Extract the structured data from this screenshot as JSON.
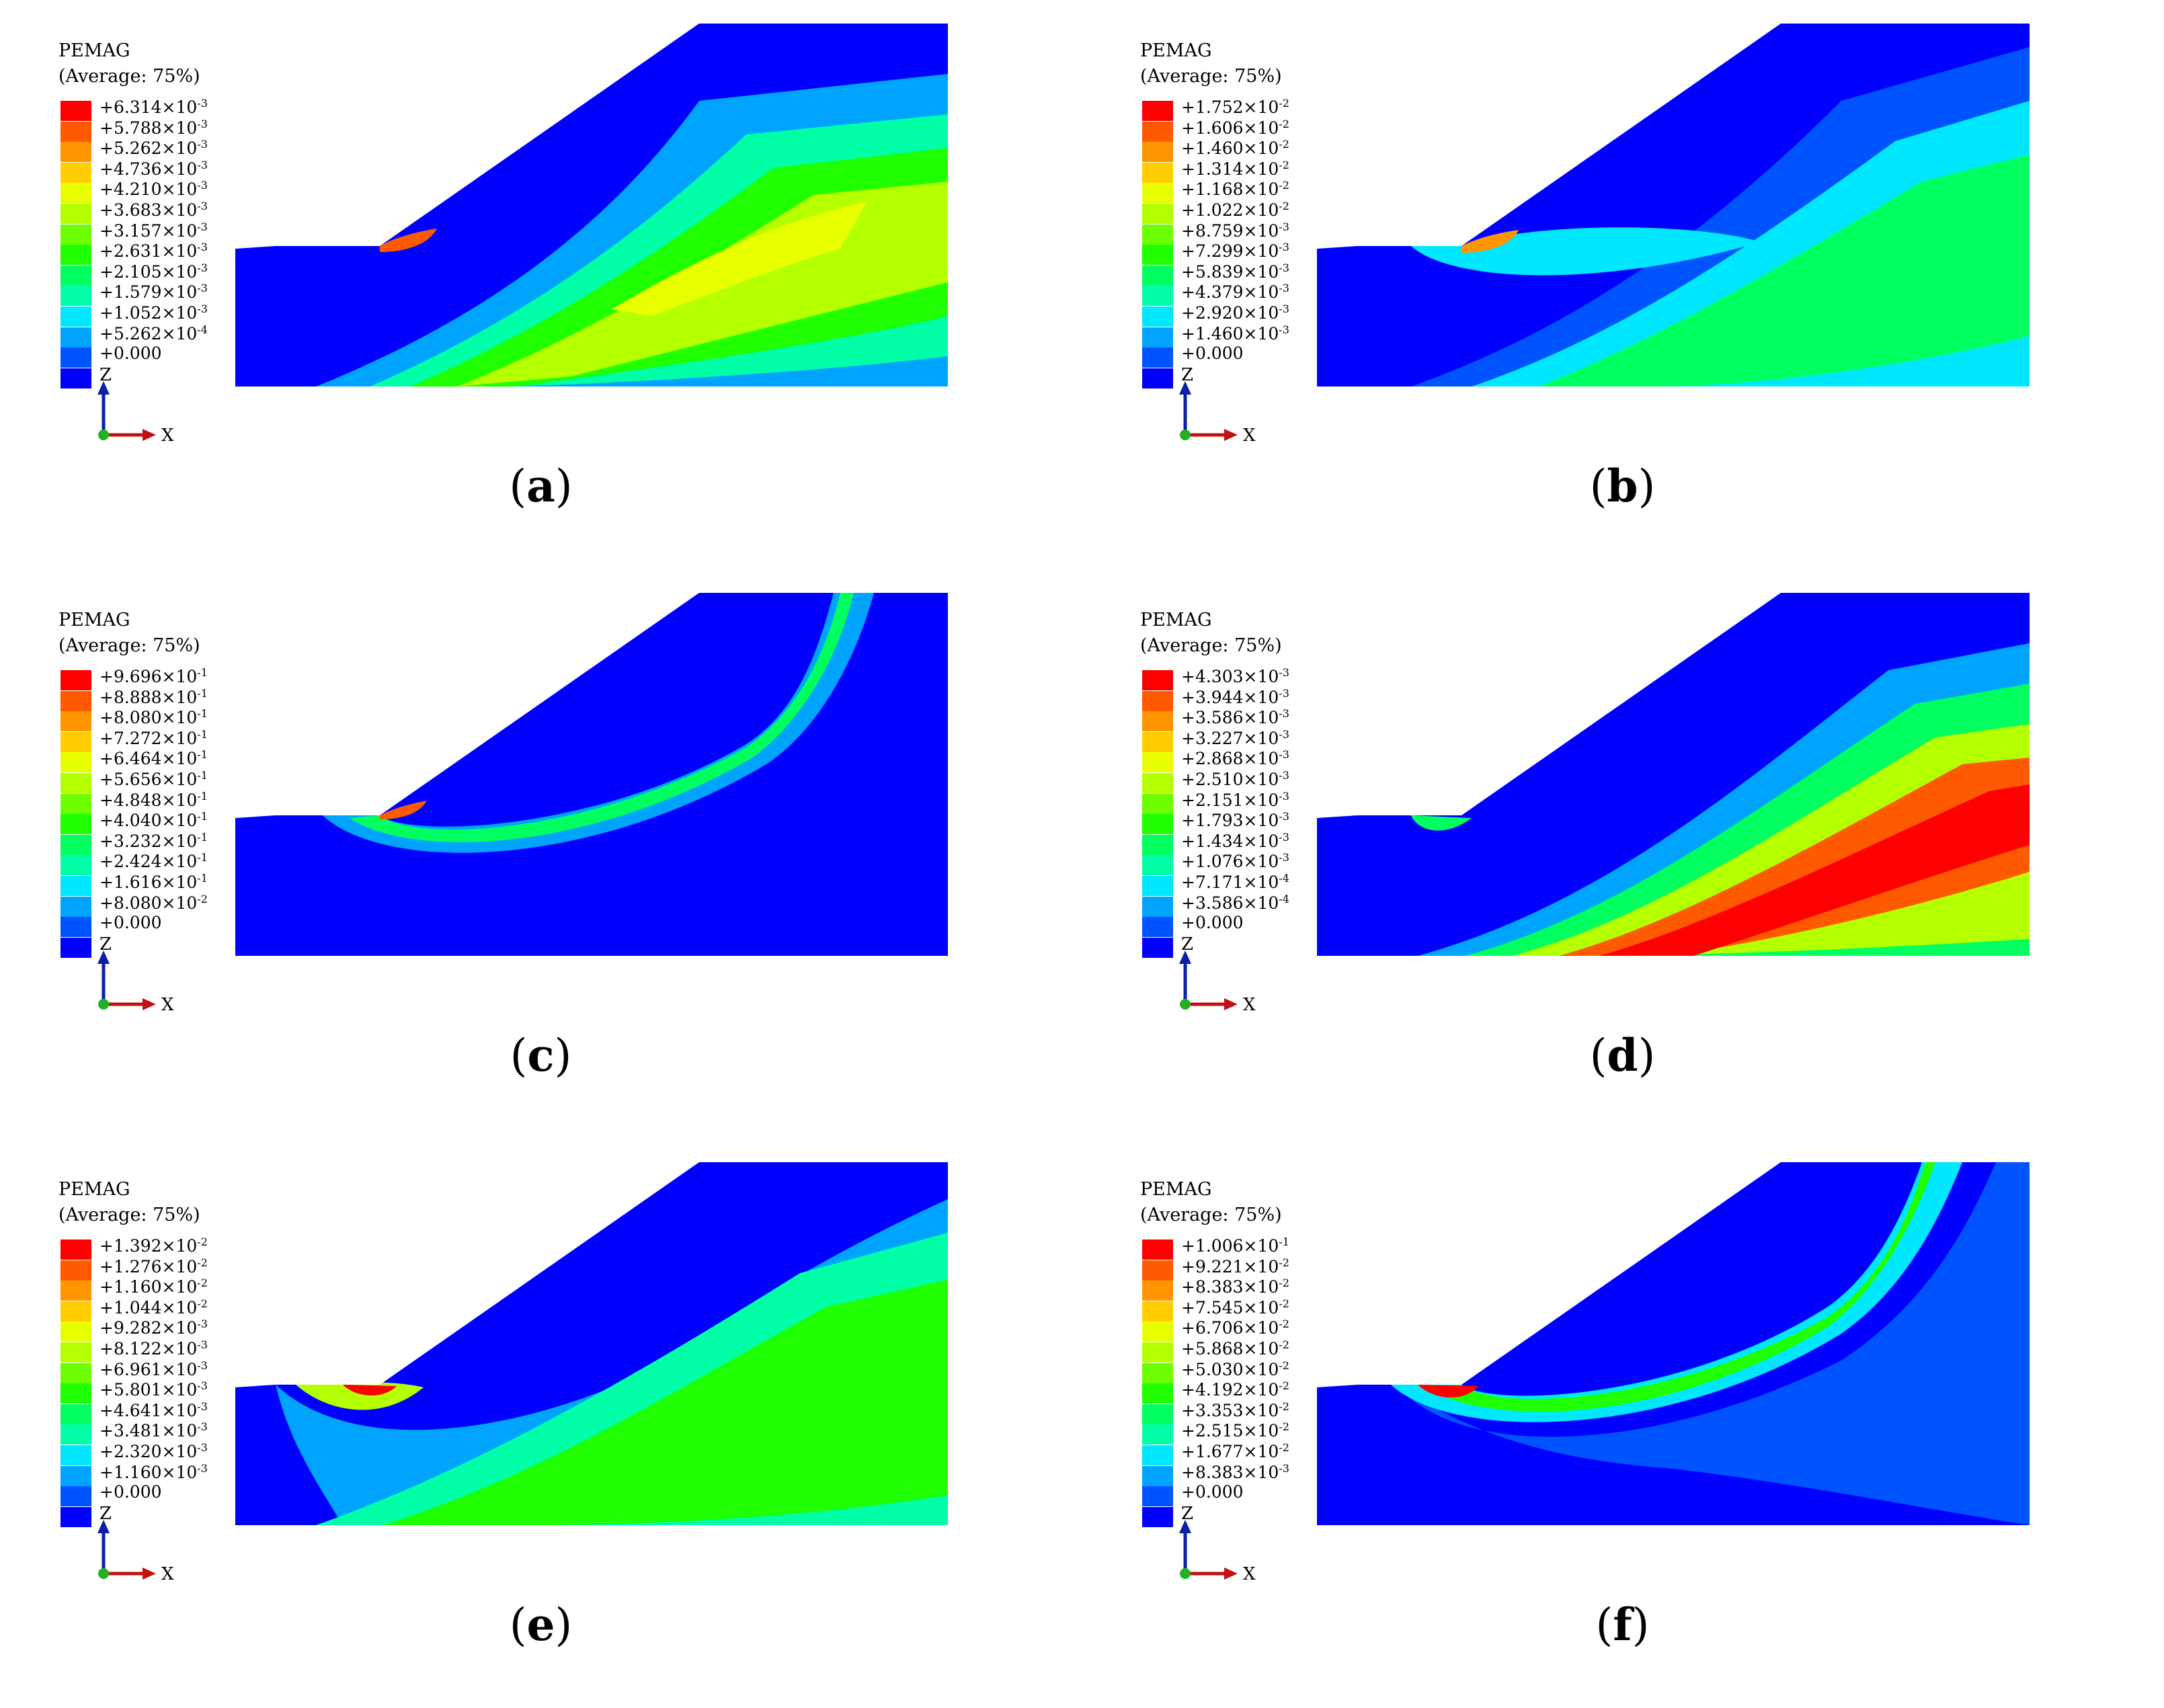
{
  "variable": "PEMAG",
  "averaging": "(Average: 75%)",
  "times_sign": "×",
  "axis_labels": {
    "vertical": "Z",
    "horizontal": "X"
  },
  "colormap": [
    "#ff0000",
    "#ff5a00",
    "#ff9600",
    "#ffcd00",
    "#e8ff00",
    "#b4ff00",
    "#6dff00",
    "#1fff00",
    "#00ff5f",
    "#00ffa7",
    "#00e7ff",
    "#00a4ff",
    "#0054ff",
    "#0000ff"
  ],
  "panels": [
    {
      "caption_letter": "a",
      "legend": [
        {
          "sign": "+",
          "mantissa": "6.314",
          "base": "10",
          "exponent": "-3"
        },
        {
          "sign": "+",
          "mantissa": "5.788",
          "base": "10",
          "exponent": "-3"
        },
        {
          "sign": "+",
          "mantissa": "5.262",
          "base": "10",
          "exponent": "-3"
        },
        {
          "sign": "+",
          "mantissa": "4.736",
          "base": "10",
          "exponent": "-3"
        },
        {
          "sign": "+",
          "mantissa": "4.210",
          "base": "10",
          "exponent": "-3"
        },
        {
          "sign": "+",
          "mantissa": "3.683",
          "base": "10",
          "exponent": "-3"
        },
        {
          "sign": "+",
          "mantissa": "3.157",
          "base": "10",
          "exponent": "-3"
        },
        {
          "sign": "+",
          "mantissa": "2.631",
          "base": "10",
          "exponent": "-3"
        },
        {
          "sign": "+",
          "mantissa": "2.105",
          "base": "10",
          "exponent": "-3"
        },
        {
          "sign": "+",
          "mantissa": "1.579",
          "base": "10",
          "exponent": "-3"
        },
        {
          "sign": "+",
          "mantissa": "1.052",
          "base": "10",
          "exponent": "-3"
        },
        {
          "sign": "+",
          "mantissa": "5.262",
          "base": "10",
          "exponent": "-4"
        },
        {
          "sign": "+",
          "mantissa": "0.000",
          "base": "",
          "exponent": ""
        }
      ]
    },
    {
      "caption_letter": "b",
      "legend": [
        {
          "sign": "+",
          "mantissa": "1.752",
          "base": "10",
          "exponent": "-2"
        },
        {
          "sign": "+",
          "mantissa": "1.606",
          "base": "10",
          "exponent": "-2"
        },
        {
          "sign": "+",
          "mantissa": "1.460",
          "base": "10",
          "exponent": "-2"
        },
        {
          "sign": "+",
          "mantissa": "1.314",
          "base": "10",
          "exponent": "-2"
        },
        {
          "sign": "+",
          "mantissa": "1.168",
          "base": "10",
          "exponent": "-2"
        },
        {
          "sign": "+",
          "mantissa": "1.022",
          "base": "10",
          "exponent": "-2"
        },
        {
          "sign": "+",
          "mantissa": "8.759",
          "base": "10",
          "exponent": "-3"
        },
        {
          "sign": "+",
          "mantissa": "7.299",
          "base": "10",
          "exponent": "-3"
        },
        {
          "sign": "+",
          "mantissa": "5.839",
          "base": "10",
          "exponent": "-3"
        },
        {
          "sign": "+",
          "mantissa": "4.379",
          "base": "10",
          "exponent": "-3"
        },
        {
          "sign": "+",
          "mantissa": "2.920",
          "base": "10",
          "exponent": "-3"
        },
        {
          "sign": "+",
          "mantissa": "1.460",
          "base": "10",
          "exponent": "-3"
        },
        {
          "sign": "+",
          "mantissa": "0.000",
          "base": "",
          "exponent": ""
        }
      ]
    },
    {
      "caption_letter": "c",
      "legend": [
        {
          "sign": "+",
          "mantissa": "9.696",
          "base": "10",
          "exponent": "-1"
        },
        {
          "sign": "+",
          "mantissa": "8.888",
          "base": "10",
          "exponent": "-1"
        },
        {
          "sign": "+",
          "mantissa": "8.080",
          "base": "10",
          "exponent": "-1"
        },
        {
          "sign": "+",
          "mantissa": "7.272",
          "base": "10",
          "exponent": "-1"
        },
        {
          "sign": "+",
          "mantissa": "6.464",
          "base": "10",
          "exponent": "-1"
        },
        {
          "sign": "+",
          "mantissa": "5.656",
          "base": "10",
          "exponent": "-1"
        },
        {
          "sign": "+",
          "mantissa": "4.848",
          "base": "10",
          "exponent": "-1"
        },
        {
          "sign": "+",
          "mantissa": "4.040",
          "base": "10",
          "exponent": "-1"
        },
        {
          "sign": "+",
          "mantissa": "3.232",
          "base": "10",
          "exponent": "-1"
        },
        {
          "sign": "+",
          "mantissa": "2.424",
          "base": "10",
          "exponent": "-1"
        },
        {
          "sign": "+",
          "mantissa": "1.616",
          "base": "10",
          "exponent": "-1"
        },
        {
          "sign": "+",
          "mantissa": "8.080",
          "base": "10",
          "exponent": "-2"
        },
        {
          "sign": "+",
          "mantissa": "0.000",
          "base": "",
          "exponent": ""
        }
      ]
    },
    {
      "caption_letter": "d",
      "legend": [
        {
          "sign": "+",
          "mantissa": "4.303",
          "base": "10",
          "exponent": "-3"
        },
        {
          "sign": "+",
          "mantissa": "3.944",
          "base": "10",
          "exponent": "-3"
        },
        {
          "sign": "+",
          "mantissa": "3.586",
          "base": "10",
          "exponent": "-3"
        },
        {
          "sign": "+",
          "mantissa": "3.227",
          "base": "10",
          "exponent": "-3"
        },
        {
          "sign": "+",
          "mantissa": "2.868",
          "base": "10",
          "exponent": "-3"
        },
        {
          "sign": "+",
          "mantissa": "2.510",
          "base": "10",
          "exponent": "-3"
        },
        {
          "sign": "+",
          "mantissa": "2.151",
          "base": "10",
          "exponent": "-3"
        },
        {
          "sign": "+",
          "mantissa": "1.793",
          "base": "10",
          "exponent": "-3"
        },
        {
          "sign": "+",
          "mantissa": "1.434",
          "base": "10",
          "exponent": "-3"
        },
        {
          "sign": "+",
          "mantissa": "1.076",
          "base": "10",
          "exponent": "-3"
        },
        {
          "sign": "+",
          "mantissa": "7.171",
          "base": "10",
          "exponent": "-4"
        },
        {
          "sign": "+",
          "mantissa": "3.586",
          "base": "10",
          "exponent": "-4"
        },
        {
          "sign": "+",
          "mantissa": "0.000",
          "base": "",
          "exponent": ""
        }
      ]
    },
    {
      "caption_letter": "e",
      "legend": [
        {
          "sign": "+",
          "mantissa": "1.392",
          "base": "10",
          "exponent": "-2"
        },
        {
          "sign": "+",
          "mantissa": "1.276",
          "base": "10",
          "exponent": "-2"
        },
        {
          "sign": "+",
          "mantissa": "1.160",
          "base": "10",
          "exponent": "-2"
        },
        {
          "sign": "+",
          "mantissa": "1.044",
          "base": "10",
          "exponent": "-2"
        },
        {
          "sign": "+",
          "mantissa": "9.282",
          "base": "10",
          "exponent": "-3"
        },
        {
          "sign": "+",
          "mantissa": "8.122",
          "base": "10",
          "exponent": "-3"
        },
        {
          "sign": "+",
          "mantissa": "6.961",
          "base": "10",
          "exponent": "-3"
        },
        {
          "sign": "+",
          "mantissa": "5.801",
          "base": "10",
          "exponent": "-3"
        },
        {
          "sign": "+",
          "mantissa": "4.641",
          "base": "10",
          "exponent": "-3"
        },
        {
          "sign": "+",
          "mantissa": "3.481",
          "base": "10",
          "exponent": "-3"
        },
        {
          "sign": "+",
          "mantissa": "2.320",
          "base": "10",
          "exponent": "-3"
        },
        {
          "sign": "+",
          "mantissa": "1.160",
          "base": "10",
          "exponent": "-3"
        },
        {
          "sign": "+",
          "mantissa": "0.000",
          "base": "",
          "exponent": ""
        }
      ]
    },
    {
      "caption_letter": "f",
      "legend": [
        {
          "sign": "+",
          "mantissa": "1.006",
          "base": "10",
          "exponent": "-1"
        },
        {
          "sign": "+",
          "mantissa": "9.221",
          "base": "10",
          "exponent": "-2"
        },
        {
          "sign": "+",
          "mantissa": "8.383",
          "base": "10",
          "exponent": "-2"
        },
        {
          "sign": "+",
          "mantissa": "7.545",
          "base": "10",
          "exponent": "-2"
        },
        {
          "sign": "+",
          "mantissa": "6.706",
          "base": "10",
          "exponent": "-2"
        },
        {
          "sign": "+",
          "mantissa": "5.868",
          "base": "10",
          "exponent": "-2"
        },
        {
          "sign": "+",
          "mantissa": "5.030",
          "base": "10",
          "exponent": "-2"
        },
        {
          "sign": "+",
          "mantissa": "4.192",
          "base": "10",
          "exponent": "-2"
        },
        {
          "sign": "+",
          "mantissa": "3.353",
          "base": "10",
          "exponent": "-2"
        },
        {
          "sign": "+",
          "mantissa": "2.515",
          "base": "10",
          "exponent": "-2"
        },
        {
          "sign": "+",
          "mantissa": "1.677",
          "base": "10",
          "exponent": "-2"
        },
        {
          "sign": "+",
          "mantissa": "8.383",
          "base": "10",
          "exponent": "-3"
        },
        {
          "sign": "+",
          "mantissa": "0.000",
          "base": "",
          "exponent": ""
        }
      ]
    }
  ]
}
